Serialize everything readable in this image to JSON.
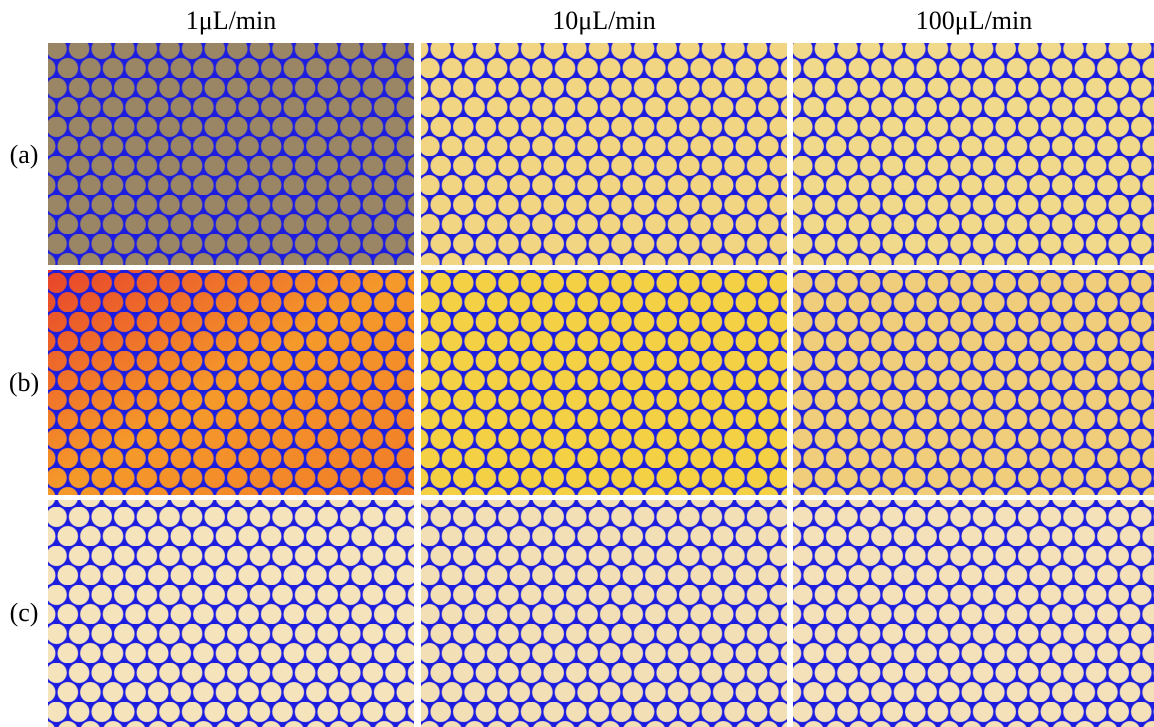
{
  "columns": [
    "1μL/min",
    "10μL/min",
    "100μL/min"
  ],
  "rows": [
    "(a)",
    "(b)",
    "(c)"
  ]
}
